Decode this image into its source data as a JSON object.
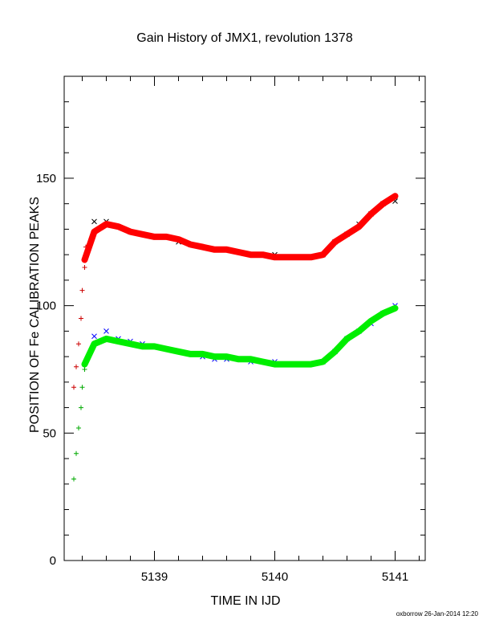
{
  "chart_data": {
    "type": "scatter",
    "title": "Gain History of JMX1, revolution 1378",
    "xlabel": "TIME IN IJD",
    "ylabel": "POSITION OF Fe CALIBRATION PEAKS",
    "xlim": [
      5138.25,
      5141.25
    ],
    "ylim": [
      0,
      190
    ],
    "x_ticks": [
      {
        "value": 5139,
        "label": "5139"
      },
      {
        "value": 5140,
        "label": "5140"
      },
      {
        "value": 5141,
        "label": "5141"
      }
    ],
    "y_ticks": [
      {
        "value": 0,
        "label": "0"
      },
      {
        "value": 50,
        "label": "50"
      },
      {
        "value": 100,
        "label": "100"
      },
      {
        "value": 150,
        "label": "150"
      }
    ],
    "grid": false,
    "legend": "none",
    "colors": {
      "upper_points": "#000000",
      "upper_fit": "#ff0000",
      "upper_early": "#cc0000",
      "lower_points": "#0000ff",
      "lower_fit": "#00ee00",
      "lower_early": "#00aa00"
    },
    "series": [
      {
        "role": "upper-peak-measurements",
        "marker": "x",
        "x": [
          5138.5,
          5138.6,
          5138.7,
          5138.8,
          5138.9,
          5139.0,
          5139.1,
          5139.2,
          5139.3,
          5139.4,
          5139.5,
          5139.6,
          5139.7,
          5139.8,
          5139.9,
          5140.0,
          5140.1,
          5140.2,
          5140.3,
          5140.4,
          5140.5,
          5140.6,
          5140.7,
          5140.8,
          5140.9,
          5141.0
        ],
        "y": [
          133,
          133,
          131,
          129,
          128,
          127,
          127,
          125,
          124,
          123,
          122,
          122,
          121,
          120,
          120,
          120,
          119,
          119,
          119,
          120,
          125,
          128,
          132,
          136,
          140,
          141
        ]
      },
      {
        "role": "upper-peak-fit",
        "marker": "line",
        "x": [
          5138.42,
          5138.5,
          5138.6,
          5138.7,
          5138.8,
          5138.9,
          5139.0,
          5139.1,
          5139.2,
          5139.3,
          5139.4,
          5139.5,
          5139.6,
          5139.7,
          5139.8,
          5139.9,
          5140.0,
          5140.1,
          5140.2,
          5140.3,
          5140.4,
          5140.5,
          5140.6,
          5140.7,
          5140.8,
          5140.9,
          5141.0
        ],
        "y": [
          118,
          129,
          132,
          131,
          129,
          128,
          127,
          127,
          126,
          124,
          123,
          122,
          122,
          121,
          120,
          120,
          119,
          119,
          119,
          119,
          120,
          125,
          128,
          131,
          136,
          140,
          143
        ]
      },
      {
        "role": "upper-peak-early",
        "marker": "+",
        "x": [
          5138.33,
          5138.35,
          5138.37,
          5138.39,
          5138.4,
          5138.42,
          5138.43
        ],
        "y": [
          68,
          76,
          85,
          95,
          106,
          115,
          123
        ]
      },
      {
        "role": "lower-peak-measurements",
        "marker": "x",
        "x": [
          5138.5,
          5138.6,
          5138.7,
          5138.8,
          5138.9,
          5139.0,
          5139.1,
          5139.2,
          5139.3,
          5139.4,
          5139.5,
          5139.6,
          5139.7,
          5139.8,
          5139.9,
          5140.0,
          5140.1,
          5140.2,
          5140.3,
          5140.4,
          5140.5,
          5140.6,
          5140.7,
          5140.8,
          5140.9,
          5141.0
        ],
        "y": [
          88,
          90,
          87,
          86,
          85,
          84,
          83,
          82,
          81,
          80,
          79,
          79,
          79,
          78,
          78,
          78,
          77,
          77,
          77,
          78,
          82,
          87,
          90,
          93,
          97,
          100
        ]
      },
      {
        "role": "lower-peak-fit",
        "marker": "line",
        "x": [
          5138.42,
          5138.5,
          5138.6,
          5138.7,
          5138.8,
          5138.9,
          5139.0,
          5139.1,
          5139.2,
          5139.3,
          5139.4,
          5139.5,
          5139.6,
          5139.7,
          5139.8,
          5139.9,
          5140.0,
          5140.1,
          5140.2,
          5140.3,
          5140.4,
          5140.5,
          5140.6,
          5140.7,
          5140.8,
          5140.9,
          5141.0
        ],
        "y": [
          77,
          85,
          87,
          86,
          85,
          84,
          84,
          83,
          82,
          81,
          81,
          80,
          80,
          79,
          79,
          78,
          77,
          77,
          77,
          77,
          78,
          82,
          87,
          90,
          94,
          97,
          99
        ]
      },
      {
        "role": "lower-peak-early",
        "marker": "+",
        "x": [
          5138.33,
          5138.35,
          5138.37,
          5138.39,
          5138.4,
          5138.42
        ],
        "y": [
          32,
          42,
          52,
          60,
          68,
          75
        ]
      }
    ]
  },
  "footer": {
    "credit": "oxborrow 26-Jan-2014 12:20"
  }
}
